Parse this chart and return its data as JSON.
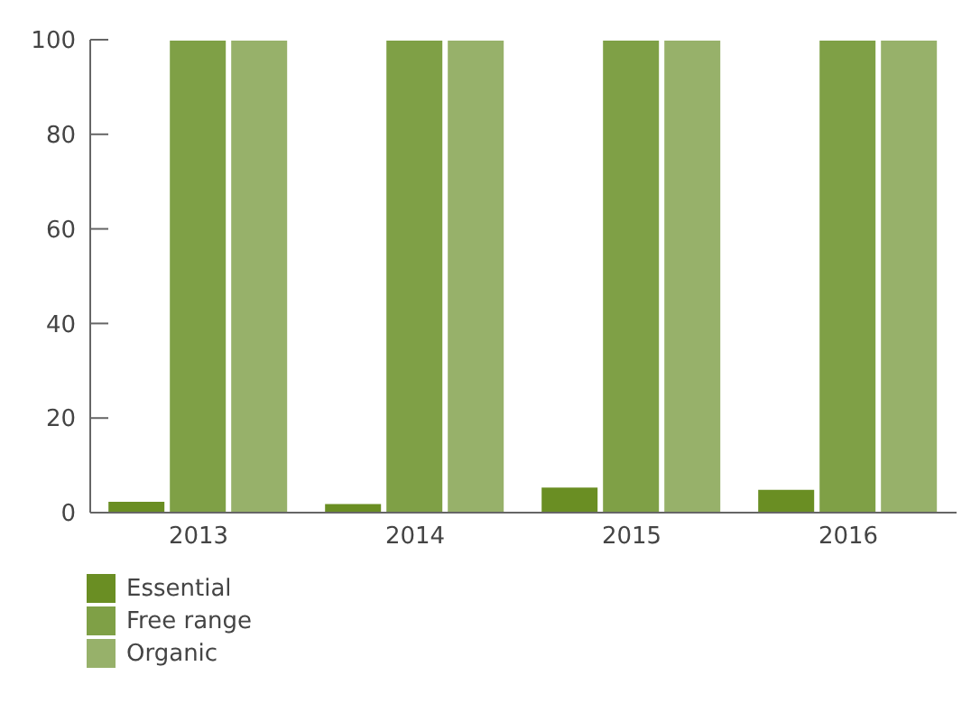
{
  "chart_data": {
    "type": "bar",
    "categories": [
      "2013",
      "2014",
      "2015",
      "2016"
    ],
    "series": [
      {
        "name": "Essential",
        "color": "#6a8e23",
        "values": [
          2.5,
          2,
          5.5,
          5
        ]
      },
      {
        "name": "Free range",
        "color": "#7fa046",
        "values": [
          100,
          100,
          100,
          100
        ]
      },
      {
        "name": "Organic",
        "color": "#97b16a",
        "values": [
          100,
          100,
          100,
          100
        ]
      }
    ],
    "ylim": [
      0,
      100
    ],
    "yticks": [
      0,
      20,
      40,
      60,
      80,
      100
    ],
    "grid": false,
    "legend": "bottom left"
  }
}
